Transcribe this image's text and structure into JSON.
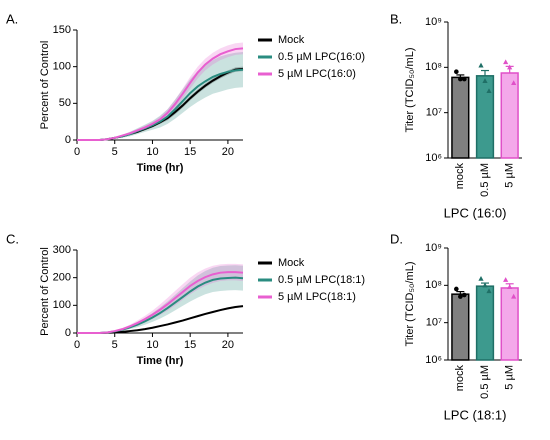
{
  "chart_data": [
    {
      "type": "line",
      "label": "A.",
      "xlabel": "Time (hr)",
      "ylabel": "Percent of Control",
      "xlim": [
        0,
        22
      ],
      "xticks": [
        0,
        5,
        10,
        15,
        20
      ],
      "ylim": [
        0,
        150
      ],
      "yticks": [
        0,
        50,
        100,
        150
      ],
      "x": [
        0,
        1,
        2,
        3,
        4,
        5,
        6,
        7,
        8,
        9,
        10,
        11,
        12,
        13,
        14,
        15,
        16,
        17,
        18,
        19,
        20,
        21,
        22
      ],
      "series": [
        {
          "name": "Mock",
          "color": "#000000",
          "values": [
            0,
            0,
            0,
            0,
            1,
            3,
            5,
            8,
            11,
            15,
            19,
            24,
            30,
            38,
            47,
            57,
            66,
            74,
            81,
            87,
            92,
            96,
            97
          ],
          "errors": [
            0,
            0,
            0,
            0,
            0,
            1,
            1,
            1,
            1,
            2,
            2,
            2,
            3,
            3,
            3,
            3,
            3,
            3,
            3,
            3,
            3,
            3,
            3
          ]
        },
        {
          "name": "0.5 µM LPC(16:0)",
          "color": "#2a8c80",
          "values": [
            0,
            0,
            0,
            0,
            1,
            3,
            5,
            8,
            12,
            16,
            20,
            25,
            32,
            42,
            53,
            64,
            73,
            80,
            86,
            90,
            93,
            95,
            96
          ],
          "errors": [
            0,
            0,
            0,
            0,
            1,
            1,
            2,
            3,
            4,
            5,
            6,
            8,
            10,
            13,
            16,
            19,
            21,
            22,
            23,
            24,
            24,
            24,
            24
          ]
        },
        {
          "name": "5 µM LPC(16:0)",
          "color": "#e85fd0",
          "values": [
            0,
            0,
            0,
            0,
            1,
            3,
            6,
            9,
            13,
            17,
            22,
            28,
            37,
            49,
            63,
            78,
            92,
            103,
            111,
            117,
            121,
            124,
            125
          ],
          "errors": [
            0,
            0,
            0,
            0,
            0,
            1,
            1,
            2,
            2,
            3,
            3,
            4,
            5,
            6,
            7,
            8,
            8,
            8,
            8,
            8,
            8,
            8,
            8
          ]
        }
      ]
    },
    {
      "type": "bar",
      "label": "B.",
      "xlabel": "LPC (16:0)",
      "ylabel": "Titer (TCID₅₀/mL)",
      "log_scale": true,
      "ylim": [
        1000000,
        1000000000
      ],
      "yticks": [
        {
          "value": 1000000,
          "label": "10⁶"
        },
        {
          "value": 10000000,
          "label": "10⁷"
        },
        {
          "value": 100000000,
          "label": "10⁸"
        },
        {
          "value": 1000000000,
          "label": "10⁹"
        }
      ],
      "categories": [
        "mock",
        "0.5 µM",
        "5 µM"
      ],
      "values": [
        60000000,
        65000000,
        75000000
      ],
      "errors": [
        8000000,
        20000000,
        30000000
      ],
      "points": [
        [
          80000000,
          55000000,
          55000000
        ],
        [
          110000000,
          50000000,
          30000000
        ],
        [
          130000000,
          100000000,
          45000000
        ]
      ],
      "colors": [
        "#808080",
        "#3d9a8e",
        "#f4a8ea"
      ],
      "edge_colors": [
        "#000000",
        "#1f6f66",
        "#e050c8"
      ]
    },
    {
      "type": "line",
      "label": "C.",
      "xlabel": "Time (hr)",
      "ylabel": "Percent of Control",
      "xlim": [
        0,
        22
      ],
      "xticks": [
        0,
        5,
        10,
        15,
        20
      ],
      "ylim": [
        0,
        300
      ],
      "yticks": [
        0,
        100,
        200,
        300
      ],
      "x": [
        0,
        1,
        2,
        3,
        4,
        5,
        6,
        7,
        8,
        9,
        10,
        11,
        12,
        13,
        14,
        15,
        16,
        17,
        18,
        19,
        20,
        21,
        22
      ],
      "series": [
        {
          "name": "Mock",
          "color": "#000000",
          "values": [
            0,
            0,
            0,
            0,
            1,
            2,
            4,
            7,
            10,
            14,
            19,
            25,
            31,
            38,
            45,
            53,
            61,
            69,
            76,
            83,
            89,
            94,
            97
          ],
          "errors": [
            0,
            0,
            0,
            0,
            0,
            1,
            1,
            1,
            1,
            2,
            2,
            2,
            2,
            3,
            3,
            3,
            3,
            3,
            3,
            3,
            3,
            3,
            3
          ]
        },
        {
          "name": "0.5 µM LPC(18:1)",
          "color": "#2a8c80",
          "values": [
            0,
            0,
            0,
            0,
            2,
            6,
            12,
            20,
            30,
            42,
            56,
            72,
            90,
            110,
            130,
            150,
            168,
            182,
            192,
            197,
            199,
            200,
            198
          ],
          "errors": [
            0,
            0,
            0,
            0,
            1,
            2,
            4,
            6,
            9,
            12,
            16,
            20,
            24,
            28,
            32,
            36,
            40,
            42,
            44,
            45,
            45,
            45,
            45
          ]
        },
        {
          "name": "5 µM LPC(18:1)",
          "color": "#e85fd0",
          "values": [
            0,
            0,
            0,
            0,
            2,
            7,
            14,
            24,
            36,
            50,
            66,
            84,
            104,
            126,
            148,
            170,
            188,
            202,
            212,
            218,
            220,
            220,
            218
          ],
          "errors": [
            0,
            0,
            0,
            0,
            1,
            2,
            4,
            6,
            9,
            12,
            15,
            19,
            23,
            26,
            28,
            30,
            31,
            31,
            31,
            30,
            30,
            30,
            30
          ]
        }
      ]
    },
    {
      "type": "bar",
      "label": "D.",
      "xlabel": "LPC (18:1)",
      "ylabel": "Titer (TCID₅₀/mL)",
      "log_scale": true,
      "ylim": [
        1000000,
        1000000000
      ],
      "yticks": [
        {
          "value": 1000000,
          "label": "10⁶"
        },
        {
          "value": 10000000,
          "label": "10⁷"
        },
        {
          "value": 100000000,
          "label": "10⁸"
        },
        {
          "value": 1000000000,
          "label": "10⁹"
        }
      ],
      "categories": [
        "mock",
        "0.5 µM",
        "5 µM"
      ],
      "values": [
        58000000,
        95000000,
        85000000
      ],
      "errors": [
        10000000,
        20000000,
        25000000
      ],
      "points": [
        [
          80000000,
          50000000,
          55000000
        ],
        [
          150000000,
          100000000,
          70000000
        ],
        [
          140000000,
          90000000,
          50000000
        ]
      ],
      "colors": [
        "#808080",
        "#3d9a8e",
        "#f4a8ea"
      ],
      "edge_colors": [
        "#000000",
        "#1f6f66",
        "#e050c8"
      ]
    }
  ]
}
